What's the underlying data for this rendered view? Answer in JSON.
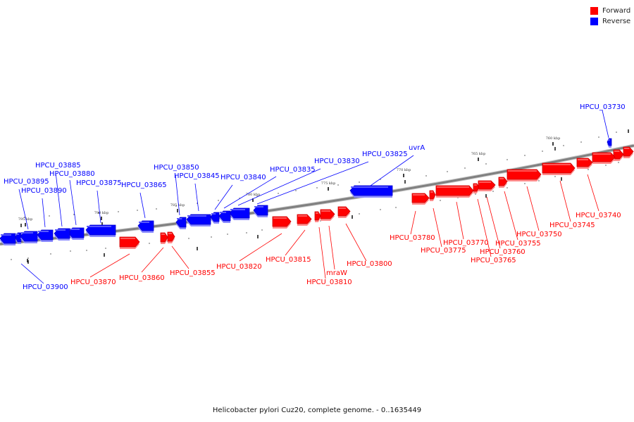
{
  "caption": "Helicobacter pylori Cuz20, complete genome. - 0..1635449",
  "legend": [
    {
      "label": "Forward",
      "color": "#ff0000"
    },
    {
      "label": "Reverse",
      "color": "#0000ff"
    }
  ],
  "colors": {
    "forward": "#ff0000",
    "reverse": "#0000ff",
    "backbone": "#808080"
  },
  "ticks": [
    "760 kbp",
    "765 kbp",
    "770 kbp",
    "775 kbp",
    "780 kbp",
    "785 kbp",
    "790 kbp",
    "795 kbp"
  ],
  "genes": [
    {
      "name": "HPCU_03730",
      "strand": "reverse"
    },
    {
      "name": "HPCU_03740",
      "strand": "forward"
    },
    {
      "name": "HPCU_03745",
      "strand": "forward"
    },
    {
      "name": "HPCU_03750",
      "strand": "forward"
    },
    {
      "name": "HPCU_03755",
      "strand": "forward"
    },
    {
      "name": "HPCU_03760",
      "strand": "forward"
    },
    {
      "name": "HPCU_03765",
      "strand": "forward"
    },
    {
      "name": "HPCU_03770",
      "strand": "forward"
    },
    {
      "name": "HPCU_03775",
      "strand": "forward"
    },
    {
      "name": "HPCU_03780",
      "strand": "forward"
    },
    {
      "name": "uvrA",
      "strand": "reverse"
    },
    {
      "name": "HPCU_03800",
      "strand": "forward"
    },
    {
      "name": "mraW",
      "strand": "forward"
    },
    {
      "name": "HPCU_03810",
      "strand": "forward"
    },
    {
      "name": "HPCU_03815",
      "strand": "forward"
    },
    {
      "name": "HPCU_03820",
      "strand": "forward"
    },
    {
      "name": "HPCU_03825",
      "strand": "reverse"
    },
    {
      "name": "HPCU_03830",
      "strand": "reverse"
    },
    {
      "name": "HPCU_03835",
      "strand": "reverse"
    },
    {
      "name": "HPCU_03840",
      "strand": "reverse"
    },
    {
      "name": "HPCU_03845",
      "strand": "reverse"
    },
    {
      "name": "HPCU_03850",
      "strand": "reverse"
    },
    {
      "name": "HPCU_03855",
      "strand": "forward"
    },
    {
      "name": "HPCU_03860",
      "strand": "forward"
    },
    {
      "name": "HPCU_03865",
      "strand": "reverse"
    },
    {
      "name": "HPCU_03870",
      "strand": "forward"
    },
    {
      "name": "HPCU_03875",
      "strand": "reverse"
    },
    {
      "name": "HPCU_03880",
      "strand": "reverse"
    },
    {
      "name": "HPCU_03885",
      "strand": "reverse"
    },
    {
      "name": "HPCU_03890",
      "strand": "reverse"
    },
    {
      "name": "HPCU_03895",
      "strand": "reverse"
    },
    {
      "name": "HPCU_03900",
      "strand": "reverse"
    }
  ]
}
